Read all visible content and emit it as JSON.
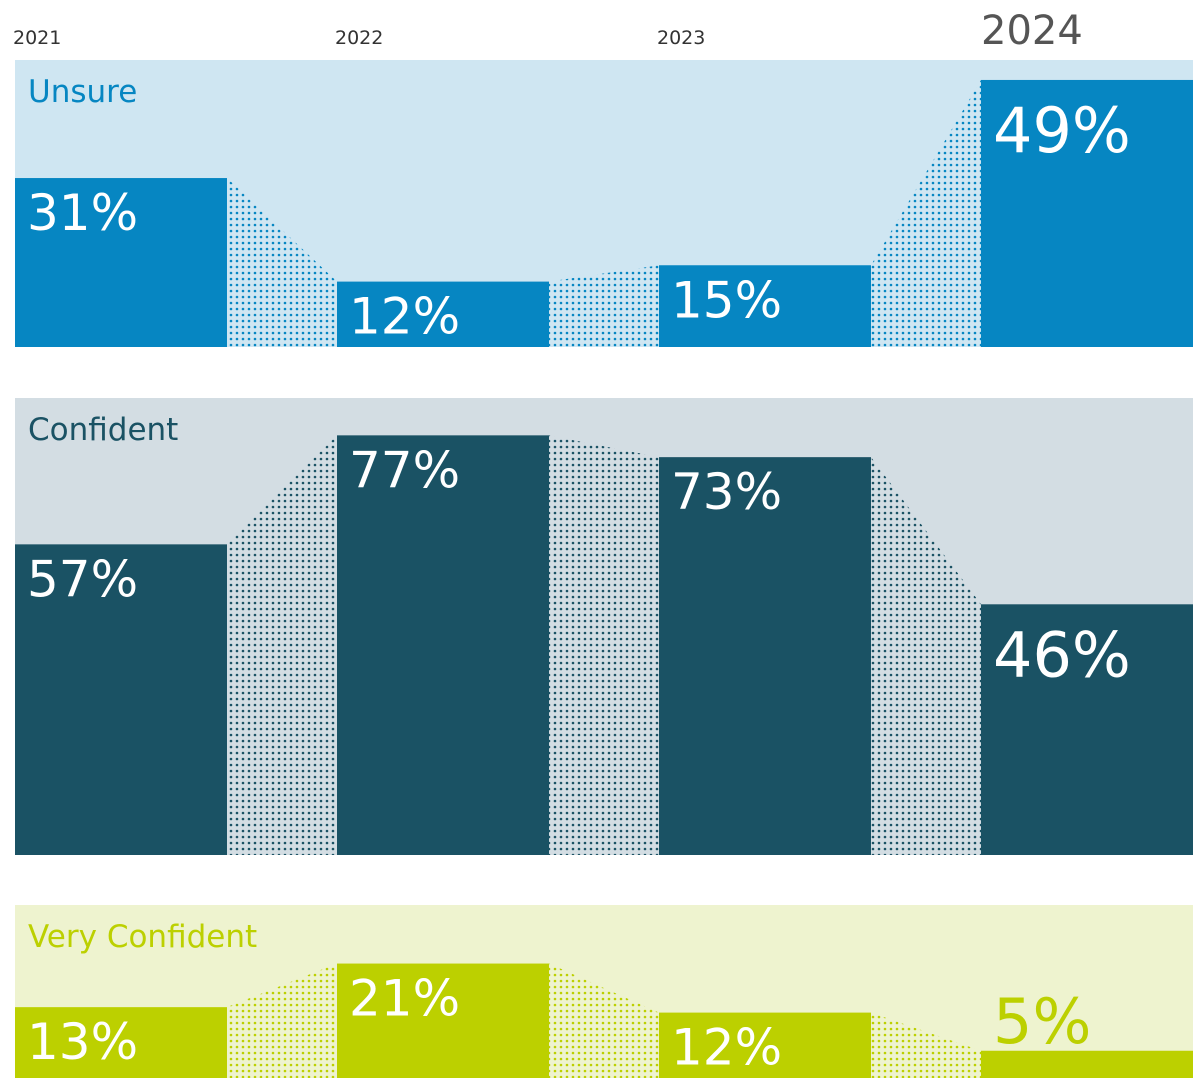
{
  "chart_data": {
    "type": "bar",
    "categories": [
      "2021",
      "2022",
      "2023",
      "2024"
    ],
    "series": [
      {
        "name": "Unsure",
        "color": "#0686c2",
        "background": "#cfe6f2",
        "values": [
          31,
          12,
          15,
          49
        ],
        "value_labels": [
          "31%",
          "12%",
          "15%",
          "49%"
        ]
      },
      {
        "name": "Confident",
        "color": "#1a5264",
        "background": "#d3dde3",
        "values": [
          57,
          77,
          73,
          46
        ],
        "value_labels": [
          "57%",
          "77%",
          "73%",
          "46%"
        ]
      },
      {
        "name": "Very Confident",
        "color": "#bcd000",
        "background": "#eef3cf",
        "values": [
          13,
          21,
          12,
          5
        ],
        "value_labels": [
          "13%",
          "21%",
          "12%",
          "5%"
        ]
      }
    ]
  }
}
